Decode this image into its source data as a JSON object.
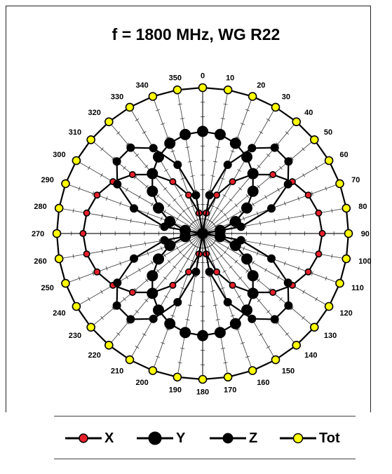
{
  "chart_data": {
    "type": "polar-line",
    "title": "f = 1800 MHz, WG R22",
    "angle_labels": [
      "0",
      "10",
      "20",
      "30",
      "40",
      "50",
      "60",
      "70",
      "80",
      "90",
      "100",
      "110",
      "120",
      "130",
      "140",
      "150",
      "160",
      "170",
      "180",
      "190",
      "200",
      "210",
      "220",
      "230",
      "240",
      "250",
      "260",
      "270",
      "280",
      "290",
      "300",
      "310",
      "320",
      "330",
      "340",
      "350"
    ],
    "angle_step_deg": 10,
    "radial_range": [
      0,
      1
    ],
    "grid": true,
    "legend_position": "bottom",
    "series": [
      {
        "name": "X",
        "color": "#e8202a",
        "marker_size": "small",
        "pattern": "abs(sin(theta))",
        "peak": 0.82
      },
      {
        "name": "Y",
        "color": "#000000",
        "marker_size": "large",
        "pattern": "abs(cos(theta))",
        "peak": 0.7
      },
      {
        "name": "Z",
        "color": "#000000",
        "marker_size": "medium",
        "pattern": "abs(sin(2*theta))",
        "peak": 0.78
      },
      {
        "name": "Tot",
        "color": "#ffff00",
        "marker_size": "medium",
        "pattern": "constant",
        "peak": 1.0
      }
    ]
  },
  "legend": {
    "items": [
      {
        "label": "X"
      },
      {
        "label": "Y"
      },
      {
        "label": "Z"
      },
      {
        "label": "Tot"
      }
    ]
  }
}
